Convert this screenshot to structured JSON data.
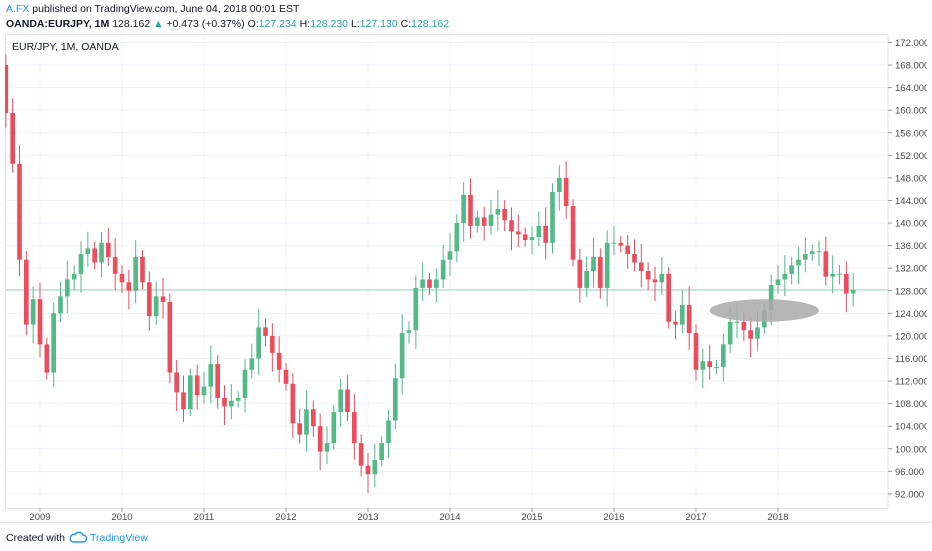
{
  "header": {
    "author": "A.FX",
    "published_text": " published on TradingView.com, June 04, 2018 00:01 EST"
  },
  "quote": {
    "symbol": "OANDA:EURJPY, 1M",
    "last": "128.162",
    "change_arrow": "▲",
    "change": "+0.473 (+0.37%)",
    "open_label": "O:",
    "open": "127.234",
    "high_label": "H:",
    "high": "128.230",
    "low_label": "L:",
    "low": "127.130",
    "close_label": "C:",
    "close": "128.162"
  },
  "footer": {
    "created_with": "Created with",
    "brand": "TradingView"
  },
  "colors": {
    "up": "#53b987",
    "down": "#eb4d5c",
    "grid": "#f0f3fa",
    "axis_text": "#4a4a4a",
    "price_line": "#9fd4b3",
    "highlight": "#a9a9a9",
    "brand": "#2196f3"
  },
  "chart_data": {
    "type": "candlestick",
    "title": "EUR/JPY, 1M, OANDA",
    "x_ticks": [
      "2009",
      "2010",
      "2011",
      "2012",
      "2013",
      "2014",
      "2015",
      "2016",
      "2017",
      "2018"
    ],
    "y_ticks": [
      "92.000",
      "96.000",
      "100.000",
      "104.000",
      "108.000",
      "112.000",
      "116.000",
      "120.000",
      "124.000",
      "128.000",
      "132.000",
      "136.000",
      "140.000",
      "144.000",
      "148.000",
      "152.000",
      "156.000",
      "160.000",
      "164.000",
      "168.000",
      "172.000"
    ],
    "ylim": [
      89.5,
      173.5
    ],
    "x_start": "2008-07",
    "current_price": 128.162,
    "highlight_zone": {
      "from": "2017-03",
      "to": "2018-07",
      "price_low": 122.5,
      "price_high": 126.5
    },
    "closes": [
      168.0,
      159.5,
      150.5,
      133.5,
      122.0,
      126.5,
      118.5,
      113.5,
      124.0,
      127.0,
      130.0,
      131.0,
      134.5,
      135.5,
      133.0,
      136.5,
      134.0,
      131.0,
      129.5,
      128.0,
      134.0,
      129.5,
      123.5,
      127.0,
      126.0,
      113.5,
      110.0,
      107.0,
      113.0,
      109.5,
      111.0,
      115.0,
      109.0,
      107.5,
      108.5,
      109.0,
      114.0,
      116.0,
      121.5,
      120.0,
      117.0,
      114.0,
      111.5,
      104.5,
      102.5,
      107.0,
      104.0,
      99.5,
      101.0,
      106.5,
      110.5,
      106.5,
      101.0,
      97.0,
      95.5,
      98.0,
      101.0,
      105.0,
      112.5,
      120.5,
      121.0,
      128.5,
      130.0,
      128.5,
      130.0,
      133.5,
      135.0,
      140.0,
      145.0,
      139.5,
      141.0,
      139.5,
      141.5,
      142.5,
      140.5,
      138.5,
      138.0,
      137.0,
      137.5,
      139.5,
      136.5,
      145.5,
      148.0,
      143.0,
      133.5,
      128.5,
      131.5,
      134.0,
      128.5,
      136.5,
      136.5,
      136.0,
      134.5,
      133.0,
      131.5,
      130.0,
      129.5,
      131.0,
      122.5,
      122.0,
      125.5,
      120.5,
      114.0,
      115.5,
      114.5,
      114.5,
      118.5,
      122.5,
      122.5,
      121.0,
      119.5,
      121.5,
      124.5,
      129.0,
      130.0,
      131.0,
      132.5,
      133.5,
      134.5,
      135.0,
      135.0,
      130.5,
      131.0,
      131.0,
      127.5,
      128.162
    ]
  }
}
